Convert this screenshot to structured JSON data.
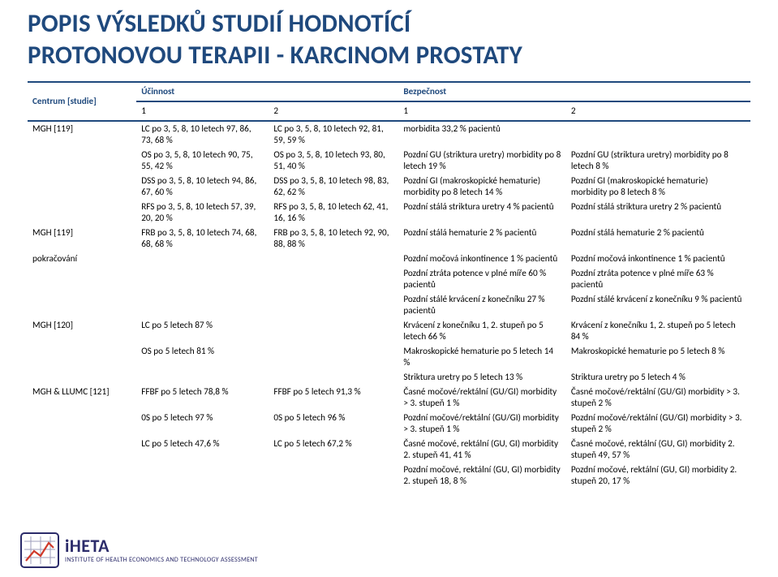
{
  "title_line1": "POPIS VÝSLEDKŮ STUDIÍ HODNOTÍCÍ",
  "title_line2_a": "PROTONOVOU TERAPII",
  "title_line2_b": " - K",
  "title_line2_c": "ARCINOM PROSTATY",
  "col_center": "Centrum [studie]",
  "col_eff": "Účinnost",
  "col_saf": "Bezpečnost",
  "sub_1": "1",
  "sub_2": "2",
  "rows": [
    {
      "center": "MGH [119]",
      "e1": "LC po 3, 5, 8, 10 letech 97, 86, 73, 68 %",
      "e2": "LC po 3, 5, 8, 10 letech 92, 81, 59, 59 %",
      "s1": "morbidita 33,2 % pacientů",
      "s2": ""
    },
    {
      "center": "",
      "e1": "OS po 3, 5, 8, 10 letech 90, 75, 55, 42 %",
      "e2": "OS po 3, 5, 8, 10 letech 93, 80, 51, 40 %",
      "s1": "Pozdní GU (striktura uretry) morbidity po 8 letech 19 %",
      "s2": "Pozdní GU (striktura uretry) morbidity po 8 letech 8 %"
    },
    {
      "center": "",
      "e1": "DSS po 3, 5, 8, 10 letech 94, 86, 67, 60 %",
      "e2": "DSS po 3, 5, 8, 10 letech 98, 83, 62, 62 %",
      "s1": "Pozdní GI (makroskopické hematurie) morbidity po 8 letech 14 %",
      "s2": "Pozdní GI (makroskopické hematurie) morbidity po 8 letech 8 %"
    },
    {
      "center": "",
      "e1": "RFS po 3, 5, 8, 10 letech 57, 39, 20, 20 %",
      "e2": "RFS po 3, 5, 8, 10 letech 62, 41, 16, 16 %",
      "s1": "Pozdní stálá striktura uretry 4 % pacientů",
      "s2": "Pozdní stálá striktura uretry 2 % pacientů"
    },
    {
      "center": "MGH [119]",
      "e1": "FRB po 3, 5, 8, 10 letech 74, 68, 68, 68 %",
      "e2": "FRB po 3, 5, 8, 10 letech 92, 90, 88, 88 %",
      "s1": "Pozdní stálá hematurie 2 % pacientů",
      "s2": "Pozdní stálá hematurie 2 % pacientů"
    },
    {
      "center": "pokračování",
      "e1": "",
      "e2": "",
      "s1": "Pozdní močová inkontinence 1 % pacientů",
      "s2": "Pozdní močová inkontinence 1 % pacientů"
    },
    {
      "center": "",
      "e1": "",
      "e2": "",
      "s1": "Pozdní ztráta potence v plné míře 60 % pacientů",
      "s2": "Pozdní ztráta potence v plné míře 63 % pacientů"
    },
    {
      "center": "",
      "e1": "",
      "e2": "",
      "s1": "Pozdní stálé krvácení z konečníku 27 % pacientů",
      "s2": "Pozdní stálé krvácení z konečníku 9 % pacientů"
    },
    {
      "center": "MGH [120]",
      "e1": "LC po 5 letech 87 %",
      "e2": "",
      "s1": "Krvácení z konečníku 1, 2. stupeň po 5 letech 66 %",
      "s2": "Krvácení z konečníku 1, 2. stupeň po 5 letech 84 %"
    },
    {
      "center": "",
      "e1": "OS po 5 letech 81 %",
      "e2": "",
      "s1": "Makroskopické hematurie po 5 letech 14 %",
      "s2": "Makroskopické hematurie po 5 letech 8 %"
    },
    {
      "center": "",
      "e1": "",
      "e2": "",
      "s1": "Striktura uretry po 5 letech 13 %",
      "s2": "Striktura uretry po 5 letech 4 %"
    },
    {
      "center": "MGH & LLUMC [121]",
      "e1": "FFBF po 5 letech 78,8 %",
      "e2": "FFBF po 5 letech 91,3 %",
      "s1": "Časné močové/rektální (GU/GI) morbidity > 3. stupeň 1 %",
      "s2": "Časné močové/rektální (GU/GI) morbidity > 3. stupeň 2 %"
    },
    {
      "center": "",
      "e1": "0S po 5 letech 97 %",
      "e2": "0S po 5 letech 96 %",
      "s1": "Pozdní močové/rektální (GU/GI) morbidity > 3. stupeň 1 %",
      "s2": "Pozdní močové/rektální (GU/GI) morbidity > 3. stupeň 2 %"
    },
    {
      "center": "",
      "e1": "LC po 5 letech 47,6 %",
      "e2": "LC po 5 letech 67,2 %",
      "s1": "Časné močové, rektální (GU, GI) morbidity 2. stupeň 41, 41 %",
      "s2": "Časné močové, rektální (GU, GI) morbidity 2. stupeň 49, 57 %"
    },
    {
      "center": "",
      "e1": "",
      "e2": "",
      "s1": "Pozdní močové, rektální (GU, GI) morbidity 2. stupeň 18, 8 %",
      "s2": "Pozdní močové, rektální (GU, GI) morbidity 2. stupeň 20, 17 %"
    }
  ],
  "logo": {
    "name": "iHETA",
    "sub": "INSTITUTE OF HEALTH ECONOMICS AND TECHNOLOGY ASSESSMENT"
  },
  "colors": {
    "title": "#1f497d",
    "rule": "#1f497d",
    "text": "#000000",
    "logo": "#2b2b6a",
    "accent": "#d03a2b"
  }
}
